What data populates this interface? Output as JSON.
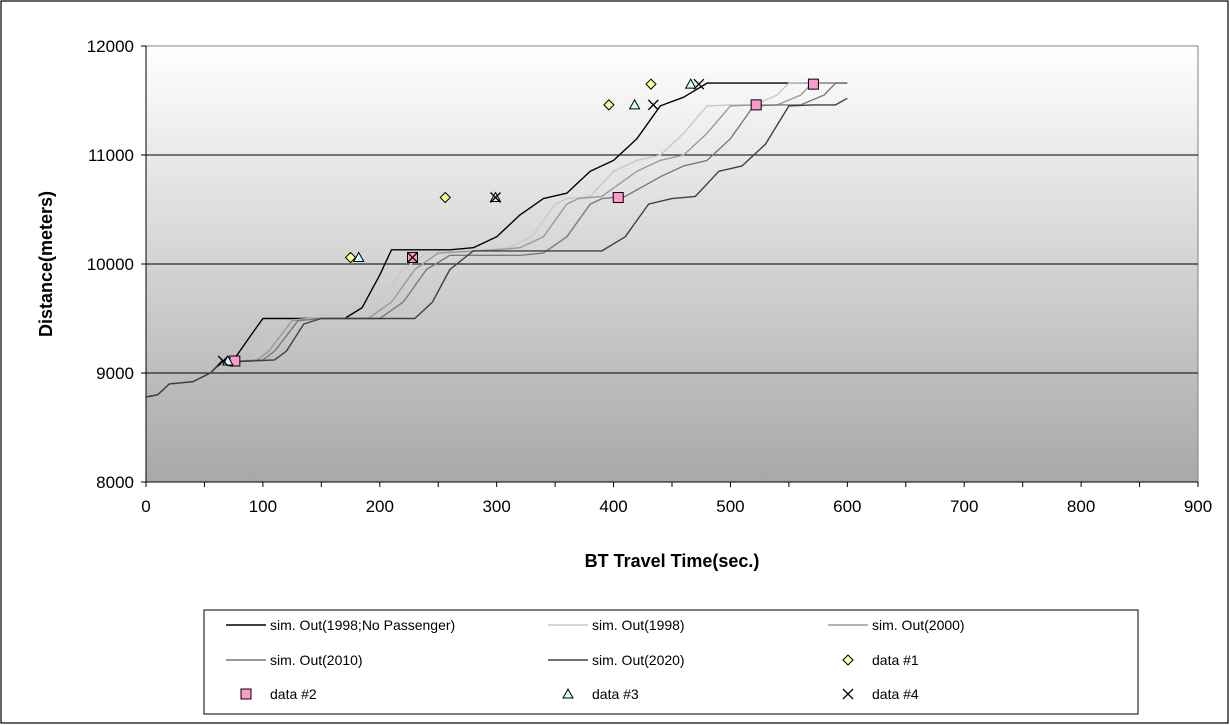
{
  "chart_data": {
    "type": "line",
    "title": "",
    "xlabel": "BT Travel Time(sec.)",
    "ylabel": "Distance(meters)",
    "xlim": [
      0,
      900
    ],
    "ylim": [
      8000,
      12000
    ],
    "x_ticks": [
      "0",
      "100",
      "200",
      "300",
      "400",
      "500",
      "600",
      "700",
      "800",
      "900"
    ],
    "y_ticks": [
      "8000",
      "9000",
      "10000",
      "11000",
      "12000"
    ],
    "grid": "horizontal major gridlines",
    "plot_background": "vertical gradient white to gray",
    "legend_position": "bottom",
    "series": [
      {
        "name": "sim. Out(1998;No Passenger)",
        "kind": "line",
        "color": "#000000",
        "x": [
          0,
          10,
          20,
          30,
          40,
          55,
          65,
          75,
          90,
          100,
          110,
          140,
          170,
          185,
          200,
          210,
          260,
          280,
          300,
          320,
          340,
          360,
          380,
          400,
          420,
          440,
          460,
          480,
          500,
          520,
          540,
          600
        ],
        "y": [
          8780,
          8800,
          8900,
          8910,
          8920,
          9000,
          9110,
          9120,
          9350,
          9500,
          9500,
          9500,
          9500,
          9600,
          9900,
          10130,
          10130,
          10150,
          10250,
          10450,
          10600,
          10650,
          10850,
          10950,
          11150,
          11450,
          11530,
          11660,
          11660,
          11660,
          11660,
          11660
        ]
      },
      {
        "name": "sim. Out(1998)",
        "kind": "line",
        "color": "#c8c8c8",
        "x": [
          0,
          10,
          20,
          30,
          40,
          55,
          65,
          75,
          90,
          100,
          120,
          140,
          180,
          200,
          220,
          240,
          290,
          310,
          330,
          350,
          360,
          380,
          400,
          420,
          440,
          460,
          480,
          500,
          520,
          540,
          550,
          600
        ],
        "y": [
          8780,
          8800,
          8900,
          8910,
          8920,
          9000,
          9100,
          9110,
          9120,
          9200,
          9480,
          9500,
          9500,
          9650,
          9950,
          10100,
          10130,
          10150,
          10250,
          10550,
          10600,
          10620,
          10850,
          10950,
          11000,
          11200,
          11450,
          11460,
          11460,
          11550,
          11660,
          11660
        ]
      },
      {
        "name": "sim. Out(2000)",
        "kind": "line",
        "color": "#9a9a9a",
        "x": [
          0,
          10,
          20,
          30,
          40,
          55,
          65,
          80,
          95,
          105,
          125,
          145,
          190,
          210,
          230,
          250,
          300,
          320,
          340,
          360,
          370,
          390,
          420,
          440,
          460,
          480,
          500,
          520,
          540,
          560,
          570,
          600
        ],
        "y": [
          8780,
          8800,
          8900,
          8910,
          8920,
          9000,
          9100,
          9110,
          9120,
          9200,
          9480,
          9500,
          9500,
          9650,
          9950,
          10100,
          10130,
          10150,
          10250,
          10550,
          10600,
          10620,
          10850,
          10950,
          11000,
          11200,
          11450,
          11460,
          11460,
          11550,
          11660,
          11660
        ]
      },
      {
        "name": "sim. Out(2010)",
        "kind": "line",
        "color": "#7a7a7a",
        "x": [
          0,
          10,
          20,
          30,
          40,
          55,
          65,
          85,
          100,
          110,
          130,
          150,
          200,
          220,
          240,
          260,
          320,
          340,
          360,
          380,
          390,
          410,
          440,
          460,
          480,
          500,
          520,
          540,
          560,
          580,
          590,
          600
        ],
        "y": [
          8780,
          8800,
          8900,
          8910,
          8920,
          9000,
          9100,
          9110,
          9120,
          9200,
          9480,
          9500,
          9500,
          9650,
          9950,
          10080,
          10080,
          10100,
          10250,
          10550,
          10600,
          10620,
          10800,
          10900,
          10950,
          11150,
          11450,
          11460,
          11460,
          11550,
          11660,
          11660
        ]
      },
      {
        "name": "sim. Out(2020)",
        "kind": "line",
        "color": "#404040",
        "x": [
          0,
          10,
          20,
          30,
          40,
          55,
          65,
          90,
          110,
          120,
          135,
          150,
          230,
          245,
          260,
          280,
          390,
          410,
          430,
          450,
          470,
          490,
          510,
          530,
          550,
          570,
          590,
          600
        ],
        "y": [
          8780,
          8800,
          8900,
          8910,
          8920,
          9000,
          9100,
          9110,
          9120,
          9200,
          9450,
          9500,
          9500,
          9650,
          9950,
          10120,
          10120,
          10250,
          10550,
          10600,
          10620,
          10850,
          10900,
          11100,
          11450,
          11460,
          11460,
          11520
        ]
      },
      {
        "name": "data #1",
        "kind": "marker",
        "marker": "diamond",
        "color": "#ffff99",
        "x": [
          175,
          256,
          396,
          432
        ],
        "y": [
          10060,
          10610,
          11460,
          11650
        ]
      },
      {
        "name": "data #2",
        "kind": "marker",
        "marker": "square",
        "color": "#ff99cc",
        "x": [
          76,
          228,
          404,
          522,
          571
        ],
        "y": [
          9110,
          10060,
          10610,
          11460,
          11650
        ]
      },
      {
        "name": "data #3",
        "kind": "marker",
        "marker": "triangle",
        "color": "#ccffff",
        "x": [
          70,
          182,
          299,
          418,
          466
        ],
        "y": [
          9110,
          10060,
          10610,
          11460,
          11650
        ]
      },
      {
        "name": "data #4",
        "kind": "marker",
        "marker": "x",
        "color": "#000000",
        "x": [
          66,
          228,
          299,
          434,
          473
        ],
        "y": [
          9110,
          10060,
          10610,
          11460,
          11650
        ]
      }
    ]
  }
}
